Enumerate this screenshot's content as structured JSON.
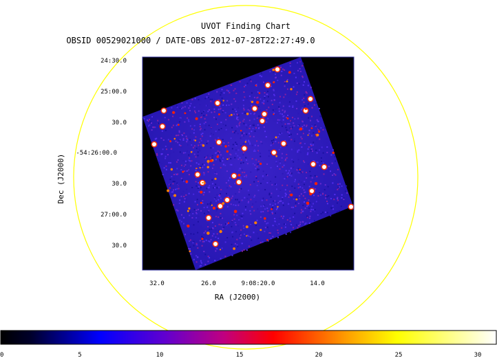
{
  "chart": {
    "title": "UVOT Finding Chart",
    "subtitle": "OBSID 00529021000 / DATE-OBS 2012-07-28T22:27:49.0",
    "ylabel": "Dec (J2000)",
    "xlabel": "RA (J2000)",
    "dec_ticks": [
      "24:30.0",
      "25:00.0",
      "30.0",
      "-54:26:00.0",
      "30.0",
      "27:00.0",
      "30.0"
    ],
    "ra_ticks": [
      "32.0",
      "26.0",
      "9:08:20.0",
      "14.0"
    ],
    "colorbar_ticks": [
      "0",
      "5",
      "10",
      "15",
      "20",
      "25",
      "30"
    ],
    "circle_color": "#ffff00",
    "colormap": [
      "#000000",
      "#0000ff",
      "#ff0000",
      "#ffff00",
      "#ffffff"
    ]
  },
  "chart_data": {
    "type": "heatmap",
    "colorbar": {
      "min": 0,
      "max": 31,
      "ticks": [
        0,
        5,
        10,
        15,
        20,
        25,
        30
      ]
    }
  }
}
